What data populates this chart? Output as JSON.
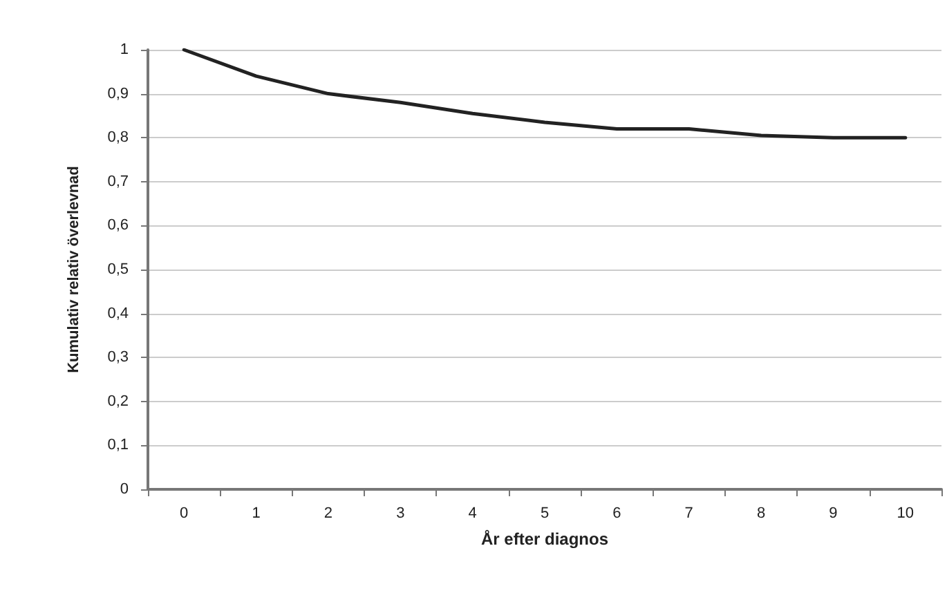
{
  "chart_data": {
    "type": "line",
    "xlabel": "År efter diagnos",
    "ylabel": "Kumulativ relativ överlevnad",
    "categories": [
      "0",
      "1",
      "2",
      "3",
      "4",
      "5",
      "6",
      "7",
      "8",
      "9",
      "10"
    ],
    "series": [
      {
        "color": "#222222",
        "values": [
          1,
          0.94,
          0.9,
          0.88,
          0.855,
          0.835,
          0.82,
          0.82,
          0.805,
          0.8,
          0.8
        ]
      }
    ],
    "ylim": [
      0,
      1
    ],
    "yticks": [
      0,
      {
        "value": 0.1,
        "label": "0,1"
      },
      {
        "value": 0.2,
        "label": "0,2"
      },
      {
        "value": 0.3,
        "label": "0,3"
      },
      {
        "value": 0.4,
        "label": "0,4"
      },
      {
        "value": 0.5,
        "label": "0,5"
      },
      {
        "value": 0.6,
        "label": "0,6"
      },
      {
        "value": 0.7,
        "label": "0,7"
      },
      {
        "value": 0.8,
        "label": "0,8"
      },
      {
        "value": 0.9,
        "label": "0,9"
      },
      1
    ],
    "grid": "y",
    "marker": "none",
    "line_style": "solid"
  }
}
